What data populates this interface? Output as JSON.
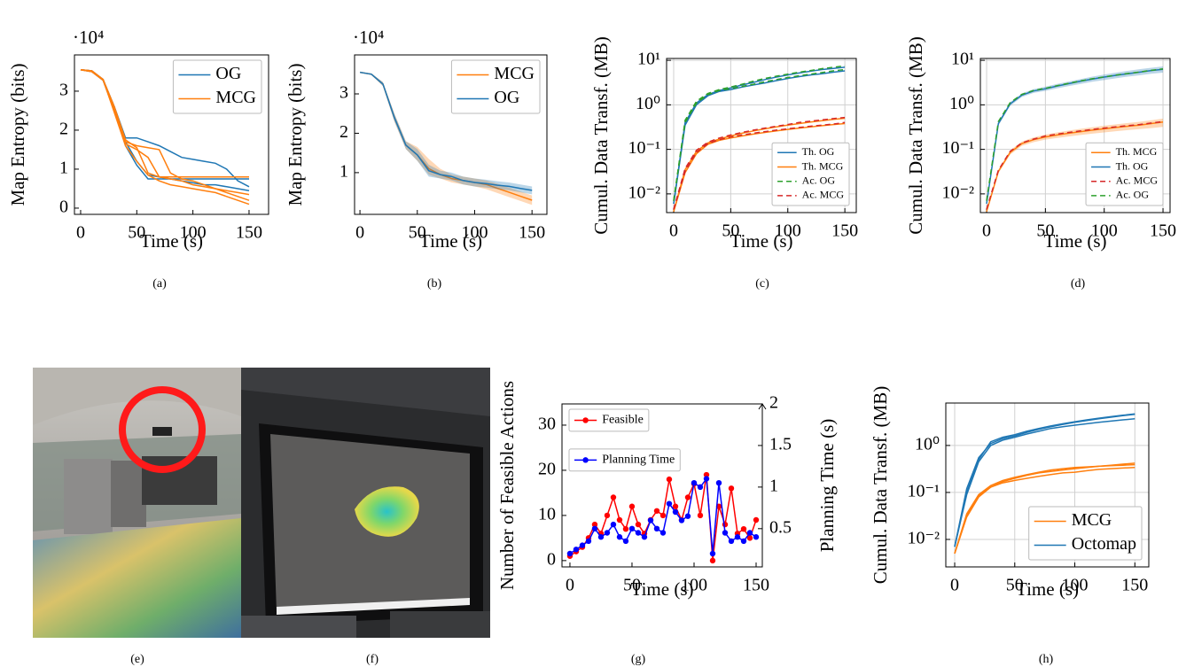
{
  "chart_data": [
    {
      "type": "line",
      "caption": "(a)",
      "xlabel": "Time (s)",
      "ylabel": "Map Entropy (bits)",
      "y_offset_label": "·10⁴",
      "x": [
        0,
        10,
        20,
        30,
        40,
        50,
        60,
        70,
        80,
        90,
        100,
        110,
        120,
        130,
        140,
        150
      ],
      "xlim": [
        -5.5,
        167.4
      ],
      "ylim": [
        -0.16,
        3.93
      ],
      "xticks": [
        0,
        50,
        100,
        150
      ],
      "yticks": [
        0,
        1,
        2,
        3
      ],
      "grid": false,
      "legend": "upper right",
      "series": [
        {
          "name": "OG",
          "color": "#1f77b4",
          "runs": [
            [
              3.55,
              3.52,
              3.3,
              2.6,
              1.8,
              1.8,
              1.7,
              1.6,
              1.45,
              1.3,
              1.25,
              1.2,
              1.15,
              1.0,
              0.7,
              0.55
            ],
            [
              3.55,
              3.52,
              3.3,
              2.5,
              1.7,
              1.2,
              0.85,
              0.8,
              0.75,
              0.7,
              0.65,
              0.6,
              0.6,
              0.55,
              0.5,
              0.45
            ],
            [
              3.55,
              3.5,
              3.28,
              2.5,
              1.6,
              1.1,
              0.75,
              0.75,
              0.75,
              0.75,
              0.75,
              0.75,
              0.75,
              0.75,
              0.75,
              0.75
            ]
          ]
        },
        {
          "name": "MCG",
          "color": "#ff7f0e",
          "runs": [
            [
              3.55,
              3.52,
              3.3,
              2.5,
              1.65,
              1.5,
              1.3,
              0.8,
              0.8,
              0.8,
              0.8,
              0.8,
              0.8,
              0.8,
              0.8,
              0.8
            ],
            [
              3.55,
              3.5,
              3.28,
              2.5,
              1.7,
              1.6,
              1.55,
              1.5,
              0.9,
              0.75,
              0.7,
              0.6,
              0.5,
              0.4,
              0.3,
              0.2
            ],
            [
              3.55,
              3.5,
              3.3,
              2.45,
              1.6,
              1.2,
              0.85,
              0.7,
              0.6,
              0.55,
              0.5,
              0.45,
              0.4,
              0.3,
              0.2,
              0.1
            ],
            [
              3.55,
              3.52,
              3.3,
              2.6,
              1.75,
              1.55,
              0.9,
              0.8,
              0.75,
              0.7,
              0.6,
              0.55,
              0.5,
              0.45,
              0.4,
              0.35
            ]
          ]
        }
      ]
    },
    {
      "type": "line",
      "caption": "(b)",
      "xlabel": "Time (s)",
      "ylabel": "Map Entropy (bits)",
      "y_offset_label": "·10⁴",
      "x": [
        0,
        10,
        20,
        30,
        40,
        50,
        60,
        70,
        80,
        90,
        100,
        110,
        120,
        130,
        140,
        150
      ],
      "xlim": [
        -4.7,
        163
      ],
      "ylim": [
        -0.06,
        3.99
      ],
      "xticks": [
        0,
        50,
        100,
        150
      ],
      "yticks": [
        1,
        2,
        3
      ],
      "grid": false,
      "legend": "upper right",
      "series": [
        {
          "name": "MCG",
          "color": "#ff7f0e",
          "values": [
            3.55,
            3.5,
            3.25,
            2.4,
            1.7,
            1.45,
            1.1,
            0.95,
            0.85,
            0.8,
            0.75,
            0.7,
            0.6,
            0.5,
            0.4,
            0.3
          ],
          "lower": [
            3.55,
            3.48,
            3.2,
            2.3,
            1.6,
            1.3,
            0.95,
            0.85,
            0.75,
            0.7,
            0.65,
            0.58,
            0.48,
            0.38,
            0.28,
            0.18
          ],
          "upper": [
            3.55,
            3.52,
            3.3,
            2.5,
            1.8,
            1.65,
            1.35,
            1.1,
            0.95,
            0.9,
            0.85,
            0.8,
            0.72,
            0.62,
            0.52,
            0.42
          ]
        },
        {
          "name": "OG",
          "color": "#1f77b4",
          "values": [
            3.55,
            3.5,
            3.25,
            2.4,
            1.7,
            1.45,
            1.05,
            0.95,
            0.9,
            0.8,
            0.75,
            0.72,
            0.68,
            0.65,
            0.6,
            0.55
          ],
          "lower": [
            3.55,
            3.48,
            3.2,
            2.3,
            1.6,
            1.3,
            0.9,
            0.85,
            0.8,
            0.7,
            0.65,
            0.62,
            0.58,
            0.55,
            0.5,
            0.45
          ],
          "upper": [
            3.55,
            3.52,
            3.3,
            2.5,
            1.8,
            1.6,
            1.2,
            1.05,
            1.0,
            0.9,
            0.85,
            0.82,
            0.78,
            0.75,
            0.7,
            0.65
          ]
        }
      ]
    },
    {
      "type": "line",
      "caption": "(c)",
      "xlabel": "Time (s)",
      "ylabel": "Cumul. Data Transf. (MB)",
      "x": [
        0,
        10,
        20,
        30,
        40,
        50,
        60,
        70,
        80,
        90,
        100,
        110,
        120,
        130,
        140,
        150
      ],
      "xlim": [
        -6.2,
        160
      ],
      "ylim": [
        0.0038,
        11
      ],
      "log_y": true,
      "xticks": [
        0,
        50,
        100,
        150
      ],
      "yticks": [
        {
          "value": 0.01,
          "label": "10⁻²"
        },
        {
          "value": 0.1,
          "label": "10⁻¹"
        },
        {
          "value": 1,
          "label": "10⁰"
        },
        {
          "value": 10,
          "label": "10¹"
        }
      ],
      "grid": true,
      "legend": "lower right",
      "series": [
        {
          "name": "Th. OG",
          "color": "#1f77b4",
          "dash": false,
          "runs": [
            [
              0.006,
              0.35,
              1.0,
              1.6,
              2.0,
              2.2,
              2.5,
              2.8,
              3.1,
              3.5,
              3.9,
              4.3,
              4.7,
              5.0,
              5.4,
              5.8
            ],
            [
              0.006,
              0.4,
              1.1,
              1.7,
              2.1,
              2.4,
              2.8,
              3.2,
              3.7,
              4.2,
              4.7,
              5.2,
              5.7,
              6.2,
              6.6,
              7.0
            ]
          ]
        },
        {
          "name": "Th. MCG",
          "color": "#ff7f0e",
          "dash": false,
          "runs": [
            [
              0.004,
              0.03,
              0.08,
              0.13,
              0.16,
              0.18,
              0.2,
              0.22,
              0.24,
              0.26,
              0.28,
              0.3,
              0.32,
              0.34,
              0.36,
              0.38
            ],
            [
              0.004,
              0.035,
              0.09,
              0.14,
              0.17,
              0.2,
              0.23,
              0.26,
              0.29,
              0.32,
              0.35,
              0.38,
              0.41,
              0.44,
              0.47,
              0.5
            ]
          ]
        },
        {
          "name": "Ac. OG",
          "color": "#2ca02c",
          "dash": true,
          "runs": [
            [
              0.007,
              0.4,
              1.1,
              1.7,
              2.1,
              2.3,
              2.6,
              2.9,
              3.3,
              3.7,
              4.1,
              4.5,
              4.9,
              5.3,
              5.8,
              6.2
            ],
            [
              0.007,
              0.45,
              1.2,
              1.8,
              2.2,
              2.5,
              2.9,
              3.4,
              3.9,
              4.4,
              4.9,
              5.4,
              5.9,
              6.5,
              7.0,
              7.5
            ]
          ]
        },
        {
          "name": "Ac. MCG",
          "color": "#d62728",
          "dash": true,
          "runs": [
            [
              0.0045,
              0.032,
              0.085,
              0.135,
              0.165,
              0.19,
              0.21,
              0.23,
              0.25,
              0.27,
              0.29,
              0.31,
              0.33,
              0.35,
              0.37,
              0.4
            ],
            [
              0.0045,
              0.037,
              0.095,
              0.145,
              0.18,
              0.21,
              0.24,
              0.27,
              0.3,
              0.33,
              0.36,
              0.4,
              0.43,
              0.46,
              0.49,
              0.52
            ]
          ]
        }
      ]
    },
    {
      "type": "line",
      "caption": "(d)",
      "xlabel": "Time (s)",
      "ylabel": "Cumul. Data Transf. (MB)",
      "x": [
        0,
        10,
        20,
        30,
        40,
        50,
        60,
        70,
        80,
        90,
        100,
        110,
        120,
        130,
        140,
        150
      ],
      "xlim": [
        -5.3,
        156
      ],
      "ylim": [
        0.0038,
        11
      ],
      "log_y": true,
      "xticks": [
        0,
        50,
        100,
        150
      ],
      "yticks": [
        {
          "value": 0.01,
          "label": "10⁻²"
        },
        {
          "value": 0.1,
          "label": "10⁻¹"
        },
        {
          "value": 1,
          "label": "10⁰"
        },
        {
          "value": 10,
          "label": "10¹"
        }
      ],
      "grid": true,
      "legend": "lower right",
      "series": [
        {
          "name": "Th. MCG",
          "color": "#ff7f0e",
          "dash": false,
          "values": [
            0.004,
            0.032,
            0.085,
            0.135,
            0.165,
            0.19,
            0.21,
            0.23,
            0.25,
            0.27,
            0.29,
            0.31,
            0.33,
            0.35,
            0.38,
            0.41
          ],
          "lower": [
            0.004,
            0.029,
            0.076,
            0.12,
            0.145,
            0.165,
            0.18,
            0.195,
            0.21,
            0.225,
            0.24,
            0.255,
            0.27,
            0.285,
            0.3,
            0.32
          ],
          "upper": [
            0.004,
            0.035,
            0.095,
            0.15,
            0.185,
            0.215,
            0.24,
            0.265,
            0.29,
            0.315,
            0.34,
            0.365,
            0.39,
            0.415,
            0.45,
            0.49
          ]
        },
        {
          "name": "Th. OG",
          "color": "#1f77b4",
          "dash": false,
          "values": [
            0.006,
            0.38,
            1.05,
            1.65,
            2.05,
            2.3,
            2.65,
            3.0,
            3.4,
            3.8,
            4.2,
            4.6,
            5.0,
            5.4,
            5.9,
            6.3
          ],
          "lower": [
            0.006,
            0.34,
            0.95,
            1.5,
            1.85,
            2.05,
            2.35,
            2.65,
            2.95,
            3.3,
            3.6,
            3.95,
            4.3,
            4.6,
            5.0,
            5.3
          ],
          "upper": [
            0.006,
            0.42,
            1.15,
            1.8,
            2.25,
            2.55,
            2.95,
            3.35,
            3.8,
            4.3,
            4.8,
            5.3,
            5.8,
            6.3,
            6.8,
            7.3
          ]
        },
        {
          "name": "Ac. MCG",
          "color": "#d62728",
          "dash": true,
          "values": [
            0.0045,
            0.034,
            0.09,
            0.14,
            0.17,
            0.2,
            0.22,
            0.24,
            0.26,
            0.28,
            0.3,
            0.32,
            0.34,
            0.36,
            0.39,
            0.42
          ]
        },
        {
          "name": "Ac. OG",
          "color": "#2ca02c",
          "dash": true,
          "values": [
            0.007,
            0.42,
            1.12,
            1.72,
            2.1,
            2.35,
            2.7,
            3.05,
            3.45,
            3.85,
            4.25,
            4.65,
            5.05,
            5.45,
            5.95,
            6.4
          ]
        }
      ]
    },
    {
      "type": "line",
      "caption": "(g)",
      "xlabel": "Time (s)",
      "ylabel": "Number of Feasible Actions",
      "y2label": "Planning Time (s)",
      "x": [
        0,
        5,
        10,
        15,
        20,
        25,
        30,
        35,
        40,
        45,
        50,
        55,
        60,
        65,
        70,
        75,
        80,
        85,
        90,
        95,
        100,
        105,
        110,
        115,
        120,
        125,
        130,
        135,
        140,
        145,
        150
      ],
      "xlim": [
        -6.4,
        155
      ],
      "ylim": [
        -1.4,
        34.7
      ],
      "y2lim": [
        0.04,
        2
      ],
      "xticks": [
        0,
        50,
        100,
        150
      ],
      "yticks": [
        0,
        10,
        20,
        30
      ],
      "y2ticks": [
        0.5,
        1,
        1.5,
        2
      ],
      "grid": false,
      "legend": "upper left",
      "legend_separate": true,
      "series": [
        {
          "name": "Feasible",
          "color": "#ff0000",
          "markers": true,
          "values": [
            1,
            2,
            3,
            5,
            8,
            6,
            10,
            14,
            9,
            7,
            12,
            8,
            6,
            9,
            11,
            10,
            18,
            12,
            9,
            14,
            17,
            10,
            19,
            0,
            12,
            8,
            16,
            6,
            7,
            5,
            9
          ]
        },
        {
          "name": "Planning Time",
          "color": "#0000ff",
          "markers": true,
          "axis": "y2",
          "values": [
            0.2,
            0.25,
            0.3,
            0.35,
            0.5,
            0.4,
            0.45,
            0.55,
            0.4,
            0.35,
            0.5,
            0.45,
            0.4,
            0.6,
            0.5,
            0.45,
            0.8,
            0.7,
            0.6,
            0.65,
            1.05,
            1.0,
            1.1,
            0.2,
            1.05,
            0.45,
            0.35,
            0.4,
            0.35,
            0.45,
            0.4
          ]
        }
      ]
    },
    {
      "type": "line",
      "caption": "(h)",
      "xlabel": "Time (s)",
      "ylabel": "Cumul. Data Transf. (MB)",
      "x": [
        0,
        10,
        20,
        30,
        40,
        50,
        60,
        70,
        80,
        90,
        100,
        110,
        120,
        130,
        140,
        150
      ],
      "xlim": [
        -7.4,
        161.6
      ],
      "ylim": [
        0.0026,
        8
      ],
      "log_y": true,
      "xticks": [
        0,
        50,
        100,
        150
      ],
      "yticks": [
        {
          "value": 0.01,
          "label": "10⁻²"
        },
        {
          "value": 0.1,
          "label": "10⁻¹"
        },
        {
          "value": 1,
          "label": "10⁰"
        }
      ],
      "grid": true,
      "legend": "lower right",
      "series": [
        {
          "name": "MCG",
          "color": "#ff7f0e",
          "runs": [
            [
              0.005,
              0.03,
              0.08,
              0.13,
              0.17,
              0.2,
              0.23,
              0.26,
              0.28,
              0.3,
              0.32,
              0.34,
              0.36,
              0.38,
              0.4,
              0.42
            ],
            [
              0.005,
              0.035,
              0.09,
              0.14,
              0.18,
              0.21,
              0.24,
              0.27,
              0.3,
              0.32,
              0.34,
              0.35,
              0.36,
              0.37,
              0.38,
              0.39
            ],
            [
              0.005,
              0.032,
              0.085,
              0.13,
              0.16,
              0.18,
              0.2,
              0.22,
              0.24,
              0.26,
              0.27,
              0.29,
              0.31,
              0.32,
              0.33,
              0.34
            ]
          ]
        },
        {
          "name": "Octomap",
          "color": "#1f77b4",
          "runs": [
            [
              0.007,
              0.1,
              0.5,
              1.2,
              1.5,
              1.7,
              2.0,
              2.3,
              2.6,
              2.9,
              3.2,
              3.5,
              3.8,
              4.1,
              4.4,
              4.7
            ],
            [
              0.007,
              0.12,
              0.55,
              1.1,
              1.4,
              1.6,
              1.9,
              2.2,
              2.5,
              2.8,
              3.1,
              3.4,
              3.7,
              4.0,
              4.3,
              4.6
            ],
            [
              0.007,
              0.09,
              0.45,
              1.0,
              1.3,
              1.5,
              1.75,
              2.0,
              2.3,
              2.5,
              2.7,
              2.9,
              3.1,
              3.3,
              3.5,
              3.7
            ]
          ]
        }
      ]
    }
  ],
  "images": [
    {
      "caption": "(e)"
    },
    {
      "caption": "(f)"
    }
  ]
}
